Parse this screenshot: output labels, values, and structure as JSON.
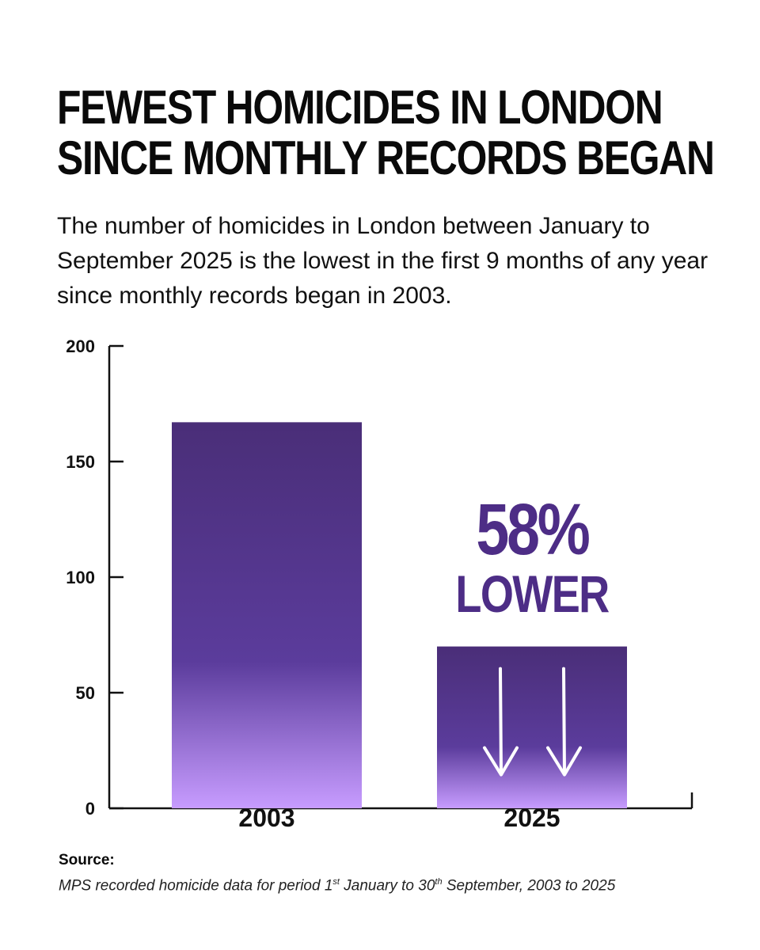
{
  "title_lines": [
    "Fewest homicides in London",
    "since monthly records began"
  ],
  "subtitle": "The number of homicides in London between January to September 2025 is the lowest in the first 9 months of any year since monthly records began in 2003.",
  "annotation": {
    "line1": "58%",
    "line2": "LOWER"
  },
  "source": {
    "label": "Source:",
    "text_a": "MPS recorded homicide data for period 1",
    "sup_a": "st",
    "text_b": " January to 30",
    "sup_b": "th",
    "text_c": " September, 2003 to 2025"
  },
  "colors": {
    "bar_top": "#4a2e78",
    "bar_mid": "#5b3c9c",
    "bar_bottom": "#c79cff",
    "annotation": "#4d2d86",
    "arrow": "#ffffff",
    "axis": "#111111"
  },
  "chart_data": {
    "type": "bar",
    "categories": [
      "2003",
      "2025"
    ],
    "values": [
      167,
      70
    ],
    "ylim": [
      0,
      200
    ],
    "yticks": [
      0,
      50,
      100,
      150,
      200
    ],
    "xlabel": "",
    "ylabel": "",
    "grid": false,
    "legend": "none"
  }
}
